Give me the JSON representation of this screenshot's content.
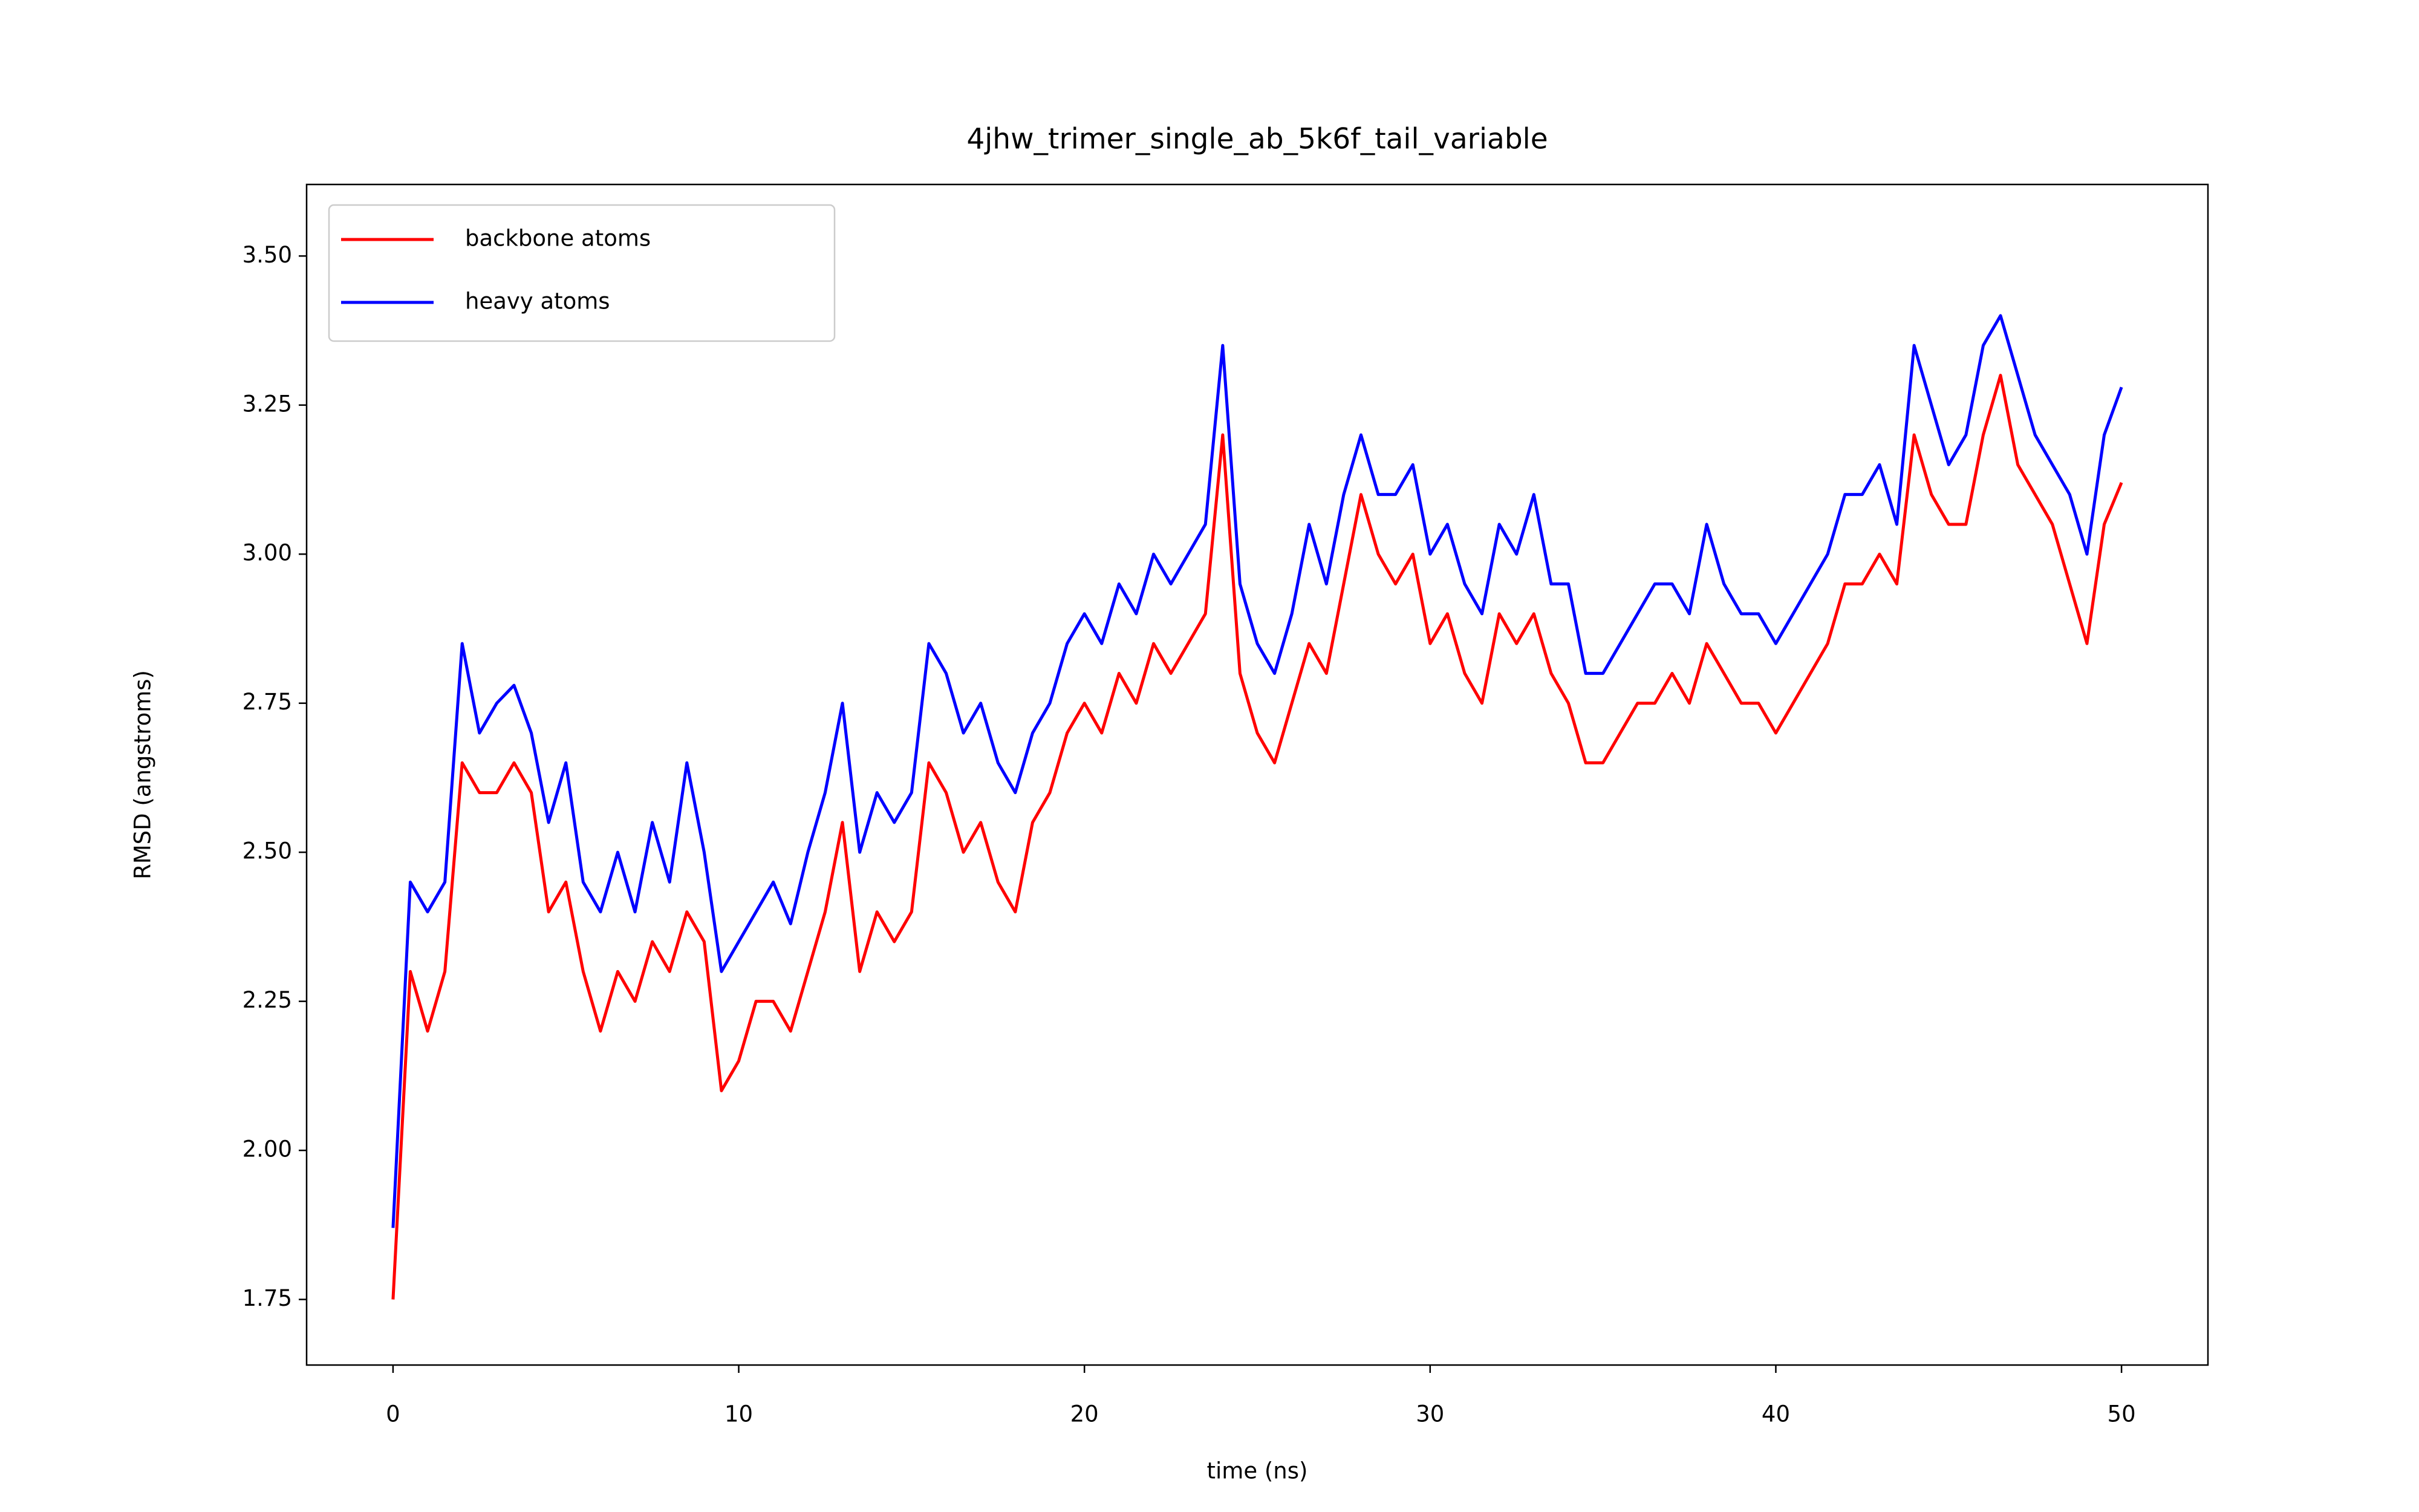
{
  "chart_data": {
    "type": "line",
    "title": "4jhw_trimer_single_ab_5k6f_tail_variable",
    "x_label": "time (ns)",
    "y_label": "RMSD (angstroms)",
    "x": [
      0,
      0.5,
      1,
      1.5,
      2,
      2.5,
      3,
      3.5,
      4,
      4.5,
      5,
      5.5,
      6,
      6.5,
      7,
      7.5,
      8,
      8.5,
      9,
      9.5,
      10,
      10.5,
      11,
      11.5,
      12,
      12.5,
      13,
      13.5,
      14,
      14.5,
      15,
      15.5,
      16,
      16.5,
      17,
      17.5,
      18,
      18.5,
      19,
      19.5,
      20,
      20.5,
      21,
      21.5,
      22,
      22.5,
      23,
      23.5,
      24,
      24.5,
      25,
      25.5,
      26,
      26.5,
      27,
      27.5,
      28,
      28.5,
      29,
      29.5,
      30,
      30.5,
      31,
      31.5,
      32,
      32.5,
      33,
      33.5,
      34,
      34.5,
      35,
      35.5,
      36,
      36.5,
      37,
      37.5,
      38,
      38.5,
      39,
      39.5,
      40,
      40.5,
      41,
      41.5,
      42,
      42.5,
      43,
      43.5,
      44,
      44.5,
      45,
      45.5,
      46,
      46.5,
      47,
      47.5,
      48,
      48.5,
      49,
      49.5,
      50
    ],
    "series": [
      {
        "name": "backbone atoms",
        "color": "#ff0000",
        "values": [
          1.75,
          2.3,
          2.2,
          2.3,
          2.65,
          2.6,
          2.6,
          2.65,
          2.6,
          2.4,
          2.45,
          2.3,
          2.2,
          2.3,
          2.25,
          2.35,
          2.3,
          2.4,
          2.35,
          2.1,
          2.15,
          2.25,
          2.25,
          2.2,
          2.3,
          2.4,
          2.55,
          2.3,
          2.4,
          2.35,
          2.4,
          2.65,
          2.6,
          2.5,
          2.55,
          2.45,
          2.4,
          2.55,
          2.6,
          2.7,
          2.75,
          2.7,
          2.8,
          2.75,
          2.85,
          2.8,
          2.85,
          2.9,
          3.2,
          2.8,
          2.7,
          2.65,
          2.75,
          2.85,
          2.8,
          2.95,
          3.1,
          3.0,
          2.95,
          3.0,
          2.85,
          2.9,
          2.8,
          2.75,
          2.9,
          2.85,
          2.9,
          2.8,
          2.75,
          2.65,
          2.65,
          2.7,
          2.75,
          2.75,
          2.8,
          2.75,
          2.85,
          2.8,
          2.75,
          2.75,
          2.7,
          2.75,
          2.8,
          2.85,
          2.95,
          2.95,
          3.0,
          2.95,
          3.2,
          3.1,
          3.05,
          3.05,
          3.2,
          3.3,
          3.15,
          3.1,
          3.05,
          2.95,
          2.85,
          3.05,
          3.12
        ]
      },
      {
        "name": "heavy atoms",
        "color": "#0000ff",
        "values": [
          1.87,
          2.45,
          2.4,
          2.45,
          2.85,
          2.7,
          2.75,
          2.78,
          2.7,
          2.55,
          2.65,
          2.45,
          2.4,
          2.5,
          2.4,
          2.55,
          2.45,
          2.65,
          2.5,
          2.3,
          2.35,
          2.4,
          2.45,
          2.38,
          2.5,
          2.6,
          2.75,
          2.5,
          2.6,
          2.55,
          2.6,
          2.85,
          2.8,
          2.7,
          2.75,
          2.65,
          2.6,
          2.7,
          2.75,
          2.85,
          2.9,
          2.85,
          2.95,
          2.9,
          3.0,
          2.95,
          3.0,
          3.05,
          3.35,
          2.95,
          2.85,
          2.8,
          2.9,
          3.05,
          2.95,
          3.1,
          3.2,
          3.1,
          3.1,
          3.15,
          3.0,
          3.05,
          2.95,
          2.9,
          3.05,
          3.0,
          3.1,
          2.95,
          2.95,
          2.8,
          2.8,
          2.85,
          2.9,
          2.95,
          2.95,
          2.9,
          3.05,
          2.95,
          2.9,
          2.9,
          2.85,
          2.9,
          2.95,
          3.0,
          3.1,
          3.1,
          3.15,
          3.05,
          3.35,
          3.25,
          3.15,
          3.2,
          3.35,
          3.4,
          3.3,
          3.2,
          3.15,
          3.1,
          3.0,
          3.2,
          3.28
        ]
      }
    ],
    "xlim": [
      -2.5,
      52.5
    ],
    "xticks": [
      0,
      10,
      20,
      30,
      40,
      50
    ],
    "ylim": [
      1.64,
      3.62
    ],
    "yticks": [
      1.75,
      {
        "value": 2,
        "label": "2.00"
      },
      2.25,
      {
        "value": 2.5,
        "label": "2.50"
      },
      2.75,
      {
        "value": 3,
        "label": "3.00"
      },
      3.25,
      {
        "value": 3.5,
        "label": "3.50"
      }
    ],
    "legend": "upper left"
  }
}
